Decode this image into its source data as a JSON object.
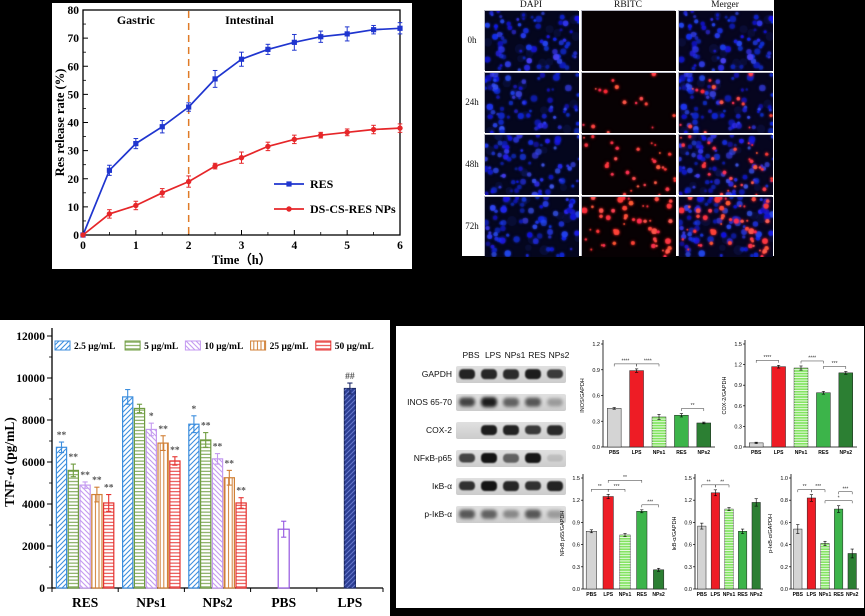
{
  "figure": {
    "background": "#000000",
    "panel_bg": "#ffffff"
  },
  "chart_data": [
    {
      "id": "release",
      "type": "line",
      "title": "",
      "xlabel": "Time（h）",
      "ylabel": "Res release rate (%)",
      "xlim": [
        0,
        6
      ],
      "ylim": [
        0,
        80
      ],
      "xticks": [
        0,
        1,
        2,
        3,
        4,
        5,
        6
      ],
      "yticks": [
        0,
        10,
        20,
        30,
        40,
        50,
        60,
        70,
        80
      ],
      "grid": false,
      "legend_position": "inside-lower-right",
      "region_labels": [
        {
          "text": "Gastric",
          "x": 1.0,
          "y": 75
        },
        {
          "text": "Intestinal",
          "x": 3.15,
          "y": 75
        }
      ],
      "divider": {
        "x": 2,
        "color": "#e07b28",
        "style": "dashed"
      },
      "x": [
        0,
        0.5,
        1,
        1.5,
        2,
        2.5,
        3,
        3.5,
        4,
        4.5,
        5,
        5.5,
        6
      ],
      "series": [
        {
          "name": "RES",
          "color": "#1f35cf",
          "marker": "square",
          "values": [
            0,
            23,
            32.5,
            38.5,
            45.5,
            55.5,
            62.5,
            66,
            68.5,
            70.5,
            71.5,
            73,
            73.5
          ],
          "errors": [
            0,
            1.8,
            1.8,
            2.2,
            1.5,
            3,
            2.5,
            1.8,
            2.8,
            2,
            2.5,
            1.5,
            2
          ]
        },
        {
          "name": "DS-CS-RES NPs",
          "color": "#e62629",
          "marker": "circle",
          "values": [
            0,
            7.5,
            10.5,
            15,
            19,
            24.5,
            27.5,
            31.5,
            34,
            35.5,
            36.5,
            37.5,
            38
          ],
          "errors": [
            0,
            1.5,
            1.5,
            1.5,
            2,
            1,
            2,
            1.5,
            1.5,
            1,
            1.2,
            1.5,
            1.5
          ]
        }
      ]
    },
    {
      "id": "tnf",
      "type": "bar",
      "title": "",
      "xlabel": "",
      "ylabel": "TNF-α (pg/mL)",
      "ylim": [
        0,
        12000
      ],
      "yticks": [
        0,
        2000,
        4000,
        6000,
        8000,
        10000,
        12000
      ],
      "categories": [
        "RES",
        "NPs1",
        "NPs2",
        "PBS",
        "LPS"
      ],
      "group_categories": [
        "RES",
        "NPs1",
        "NPs2"
      ],
      "legend_position": "inside-top",
      "series": [
        {
          "name": "2.5 μg/mL",
          "color": "#3c8ede",
          "hatch": "diag-up",
          "values": [
            6700,
            9100,
            7800
          ],
          "errors": [
            250,
            350,
            400
          ],
          "sig": [
            "**",
            "",
            "*"
          ]
        },
        {
          "name": "5 μg/mL",
          "color": "#6f9c40",
          "hatch": "horiz",
          "values": [
            5600,
            8550,
            7050
          ],
          "errors": [
            300,
            200,
            350
          ],
          "sig": [
            "**",
            "",
            "**"
          ]
        },
        {
          "name": "10 μg/mL",
          "color": "#c49af0",
          "hatch": "diag-down",
          "values": [
            4900,
            7550,
            6150
          ],
          "errors": [
            150,
            300,
            250
          ],
          "sig": [
            "**",
            "*",
            "**"
          ]
        },
        {
          "name": "25 μg/mL",
          "color": "#d07f35",
          "hatch": "vert",
          "values": [
            4450,
            6900,
            5250
          ],
          "errors": [
            350,
            350,
            350
          ],
          "sig": [
            "**",
            "**",
            "**"
          ]
        },
        {
          "name": "50 μg/mL",
          "color": "#e53230",
          "hatch": "horiz",
          "values": [
            4050,
            6050,
            4050
          ],
          "errors": [
            400,
            200,
            250
          ],
          "sig": [
            "**",
            "**",
            "**"
          ]
        }
      ],
      "single_bars": [
        {
          "name": "PBS",
          "fill": "#ffffff",
          "stroke": "#9456e0",
          "hatch": "none",
          "value": 2800,
          "error": 380,
          "sig": ""
        },
        {
          "name": "LPS",
          "fill": "#2c3e94",
          "stroke": "#1d2a66",
          "hatch": "diag-navy",
          "value": 9500,
          "error": 260,
          "sig": "##"
        }
      ]
    },
    {
      "id": "inos",
      "type": "bar",
      "ylabel": "INOS/GAPDH",
      "ylim": [
        0,
        1.2
      ],
      "yticks": [
        0.0,
        0.3,
        0.6,
        0.9,
        1.2
      ],
      "categories": [
        "PBS",
        "LPS",
        "NPs1",
        "RES",
        "NPs2"
      ],
      "values": [
        0.45,
        0.89,
        0.35,
        0.37,
        0.28
      ],
      "errors": [
        0.01,
        0.02,
        0.03,
        0.02,
        0.01
      ],
      "brackets": [
        {
          "from": 0,
          "to": 1,
          "label": "****"
        },
        {
          "from": 1,
          "to": 2,
          "label": "****"
        },
        {
          "from": 3,
          "to": 4,
          "label": "**"
        }
      ]
    },
    {
      "id": "cox2",
      "type": "bar",
      "ylabel": "COX-2/GAPDH",
      "ylim": [
        0,
        1.5
      ],
      "yticks": [
        0.0,
        0.3,
        0.6,
        0.9,
        1.2,
        1.5
      ],
      "categories": [
        "PBS",
        "LPS",
        "NPs1",
        "RES",
        "NPs2"
      ],
      "values": [
        0.06,
        1.17,
        1.15,
        0.79,
        1.08
      ],
      "errors": [
        0.01,
        0.02,
        0.03,
        0.02,
        0.02
      ],
      "brackets": [
        {
          "from": 0,
          "to": 1,
          "label": "****"
        },
        {
          "from": 2,
          "to": 3,
          "label": "****"
        },
        {
          "from": 3,
          "to": 4,
          "label": "***"
        }
      ]
    },
    {
      "id": "nfkb",
      "type": "bar",
      "ylabel": "NFκB p65/GAPDH",
      "ylim": [
        0,
        1.5
      ],
      "yticks": [
        0.0,
        0.3,
        0.6,
        0.9,
        1.2,
        1.5
      ],
      "categories": [
        "PBS",
        "LPS",
        "NPs1",
        "RES",
        "NPs2"
      ],
      "values": [
        0.78,
        1.25,
        0.73,
        1.05,
        0.26
      ],
      "errors": [
        0.02,
        0.03,
        0.02,
        0.02,
        0.02
      ],
      "brackets": [
        {
          "from": 0,
          "to": 1,
          "label": "**"
        },
        {
          "from": 1,
          "to": 2,
          "label": "***"
        },
        {
          "from": 1,
          "to": 3,
          "label": "**",
          "raise": 1
        },
        {
          "from": 3,
          "to": 4,
          "label": "***"
        }
      ]
    },
    {
      "id": "ikb",
      "type": "bar",
      "ylabel": "IκB-α/GAPDH",
      "ylim": [
        0,
        1.5
      ],
      "yticks": [
        0.0,
        0.3,
        0.6,
        0.9,
        1.2,
        1.5
      ],
      "categories": [
        "PBS",
        "LPS",
        "NPs1",
        "RES",
        "NPs2"
      ],
      "values": [
        0.85,
        1.3,
        1.08,
        0.78,
        1.17
      ],
      "errors": [
        0.04,
        0.04,
        0.02,
        0.03,
        0.05
      ],
      "brackets": [
        {
          "from": 0,
          "to": 1,
          "label": "**"
        },
        {
          "from": 1,
          "to": 2,
          "label": "**"
        }
      ]
    },
    {
      "id": "pikb",
      "type": "bar",
      "ylabel": "p-IκB-α/GAPDH",
      "ylim": [
        0,
        1.0
      ],
      "yticks": [
        0.0,
        0.2,
        0.4,
        0.6,
        0.8,
        1.0
      ],
      "categories": [
        "PBS",
        "LPS",
        "NPs1",
        "RES",
        "NPs2"
      ],
      "values": [
        0.54,
        0.82,
        0.41,
        0.72,
        0.32
      ],
      "errors": [
        0.04,
        0.03,
        0.02,
        0.03,
        0.04
      ],
      "brackets": [
        {
          "from": 0,
          "to": 1,
          "label": "**"
        },
        {
          "from": 1,
          "to": 2,
          "label": "***"
        },
        {
          "from": 2,
          "to": 4,
          "label": "*"
        },
        {
          "from": 3,
          "to": 4,
          "label": "***",
          "raise": 1
        }
      ]
    }
  ],
  "mini_style": {
    "bar_colors": [
      "#d4d4d4",
      "#ee1c25",
      "#7fe35c",
      "#3cb44a",
      "#2c7f33"
    ],
    "striped_bar_index": 2,
    "bar_stroke": "#222222"
  },
  "microscopy": {
    "col_headers": [
      "DAPI",
      "RBITC",
      "Merger"
    ],
    "row_labels": [
      "0h",
      "24h",
      "48h",
      "72h"
    ],
    "red_counts": [
      0,
      16,
      30,
      50
    ],
    "blue_count": 72,
    "cell_colors": {
      "dapi_bg": "#04061e",
      "rbitc_bg": "#070103",
      "merge_bg": "#06051f",
      "blue_dot": "#2b3fe8",
      "red_dot": "#ff3333"
    }
  },
  "blot_panel": {
    "lane_headers": [
      "PBS",
      "LPS",
      "NPs1",
      "RES",
      "NPs2"
    ],
    "strip_bg": "#d9d9d9",
    "band_color": "#141414",
    "rows": [
      {
        "label": "GAPDH",
        "intensities": [
          0.92,
          0.9,
          0.88,
          0.95,
          0.8
        ],
        "fuzzy": false
      },
      {
        "label": "INOS 65-70",
        "intensities": [
          0.75,
          0.95,
          0.6,
          0.65,
          0.3
        ],
        "fuzzy": true
      },
      {
        "label": "COX-2",
        "intensities": [
          0,
          0.95,
          0.92,
          0.8,
          0.88
        ],
        "fuzzy": false
      },
      {
        "label": "NFκB-p65",
        "intensities": [
          0.75,
          1.0,
          0.6,
          0.98,
          0.12
        ],
        "fuzzy": false
      },
      {
        "label": "IκB-α",
        "intensities": [
          0.85,
          1.0,
          0.9,
          0.85,
          0.92
        ],
        "fuzzy": false
      },
      {
        "label": "p-IκB-α",
        "intensities": [
          0.65,
          0.6,
          0.4,
          0.65,
          0.3
        ],
        "fuzzy": true
      }
    ]
  }
}
